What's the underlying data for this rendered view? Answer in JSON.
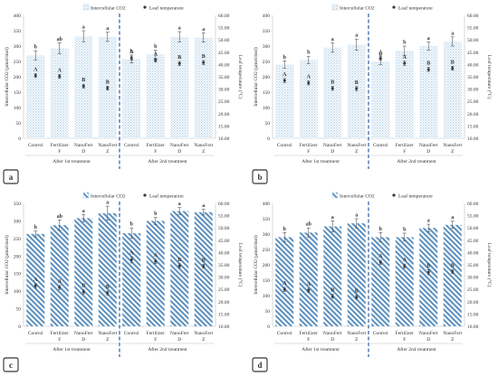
{
  "legend": {
    "co2": "Intercellular CO2",
    "temp": "Leaf temperature"
  },
  "axes": {
    "left_title": "Intercellular CO2 (µmol/mol)",
    "right_title": "Leaf temperature (°C)"
  },
  "treatments": [
    "Control",
    "Fertilizer",
    "NanoFert",
    "NanoFert"
  ],
  "treatment_sublabels": [
    "",
    "F",
    "D",
    "Z"
  ],
  "groups": [
    "After 1st treatment",
    "After 2nd treatment"
  ],
  "colors": {
    "bar_fill": "#b8d4ea",
    "bar_stripe": "#5b8fbd",
    "marker": "#3a3a3a",
    "divider": "#2e5c9e",
    "axis": "#bfbfbf",
    "text": "#333333",
    "panel_label_border": "#000000"
  },
  "chart_data": [
    {
      "panel": "a",
      "type": "bar",
      "bar_pattern": "dots",
      "categories": [
        "Control",
        "Fertilizer F",
        "NanoFert D",
        "NanoFert Z",
        "Control",
        "Fertilizer F",
        "NanoFert D",
        "NanoFert Z"
      ],
      "series": [
        {
          "name": "Intercellular CO2",
          "values": [
            270,
            293,
            332,
            330,
            258,
            272,
            330,
            328
          ],
          "errors": [
            15,
            18,
            18,
            15,
            13,
            15,
            17,
            15
          ],
          "letters": [
            "b",
            "ab",
            "a",
            "a",
            "b",
            "b",
            "a",
            "a"
          ]
        },
        {
          "name": "Leaf temperature",
          "values": [
            35.5,
            35.2,
            31.2,
            30.4,
            42.6,
            41.8,
            40.4,
            40.8
          ],
          "errors": [
            0.8,
            0.8,
            0.8,
            0.8,
            0.8,
            0.8,
            0.8,
            0.8
          ],
          "letters": [
            "A",
            "A",
            "B",
            "B",
            "A",
            "A",
            "B",
            "B"
          ]
        }
      ],
      "ylim_left": [
        0,
        400
      ],
      "ylim_right": [
        10,
        60
      ],
      "group_labels": [
        "After 1st treatment",
        "After 2nd treatment"
      ]
    },
    {
      "panel": "b",
      "type": "bar",
      "bar_pattern": "dots",
      "categories": [
        "Control",
        "Fertilizer F",
        "NanoFert D",
        "NanoFert Z",
        "Control",
        "Fertilizer F",
        "NanoFert D",
        "NanoFert Z"
      ],
      "series": [
        {
          "name": "Intercellular CO2",
          "values": [
            240,
            255,
            295,
            305,
            250,
            285,
            300,
            315
          ],
          "errors": [
            12,
            12,
            15,
            18,
            10,
            15,
            13,
            15
          ],
          "letters": [
            "b",
            "b",
            "a",
            "a",
            "b",
            "b",
            "a",
            "a"
          ]
        },
        {
          "name": "Leaf temperature",
          "values": [
            33.5,
            32.5,
            30.3,
            30.2,
            42.5,
            40.5,
            38.0,
            38.5
          ],
          "errors": [
            0.8,
            0.8,
            0.8,
            0.8,
            0.8,
            0.8,
            0.8,
            0.8
          ],
          "letters": [
            "A",
            "A",
            "B",
            "B",
            "A",
            "A",
            "B",
            "B"
          ]
        }
      ],
      "ylim_left": [
        0,
        400
      ],
      "ylim_right": [
        10,
        60
      ],
      "group_labels": [
        "After 1st treatment",
        "After 2nd treatment"
      ]
    },
    {
      "panel": "c",
      "type": "bar",
      "bar_pattern": "stripes",
      "categories": [
        "Control",
        "Fertilizer F",
        "NanoFert D",
        "NanoFert Z",
        "Control",
        "Fertilizer F",
        "NanoFert D",
        "NanoFert Z"
      ],
      "series": [
        {
          "name": "Intercellular CO2",
          "values": [
            263,
            288,
            308,
            322,
            265,
            300,
            328,
            325
          ],
          "errors": [
            8,
            15,
            10,
            20,
            15,
            10,
            10,
            8
          ],
          "letters": [
            "b",
            "ab",
            "a",
            "a",
            "b",
            "b",
            "a",
            "a"
          ]
        },
        {
          "name": "Leaf temperature",
          "values": [
            26.5,
            25.8,
            24.0,
            23.5,
            37.0,
            36.4,
            34.6,
            34.4
          ],
          "errors": [
            0.8,
            0.8,
            0.8,
            0.8,
            1.2,
            0.8,
            0.8,
            0.8
          ],
          "letters": [
            "A",
            "A",
            "B",
            "B",
            "A",
            "A",
            "B",
            "B"
          ]
        }
      ],
      "ylim_left": [
        0,
        350
      ],
      "ylim_right": [
        10,
        60
      ],
      "group_labels": [
        "After 1st treatment",
        "After 2nd treatment"
      ]
    },
    {
      "panel": "d",
      "type": "bar",
      "bar_pattern": "stripes",
      "categories": [
        "Control",
        "Fertilizer F",
        "NanoFert D",
        "NanoFert Z",
        "Control",
        "Fertilizer F",
        "NanoFert D",
        "NanoFert Z"
      ],
      "series": [
        {
          "name": "Intercellular CO2",
          "values": [
            290,
            305,
            325,
            335,
            290,
            290,
            320,
            330
          ],
          "errors": [
            15,
            15,
            18,
            15,
            15,
            13,
            12,
            12
          ],
          "letters": [
            "b",
            "ab",
            "a",
            "a",
            "b",
            "b",
            "a",
            "a"
          ]
        },
        {
          "name": "Leaf temperature",
          "values": [
            25.0,
            24.6,
            22.2,
            21.8,
            36.0,
            34.5,
            32.0,
            32.2
          ],
          "errors": [
            0.8,
            0.8,
            0.8,
            0.8,
            0.8,
            0.8,
            1.0,
            0.8
          ],
          "letters": [
            "A",
            "A",
            "B",
            "B",
            "A",
            "A",
            "B",
            "B"
          ]
        }
      ],
      "ylim_left": [
        0,
        400
      ],
      "ylim_right": [
        10,
        60
      ],
      "group_labels": [
        "After 1st treatment",
        "After 2nd treatment"
      ]
    }
  ]
}
